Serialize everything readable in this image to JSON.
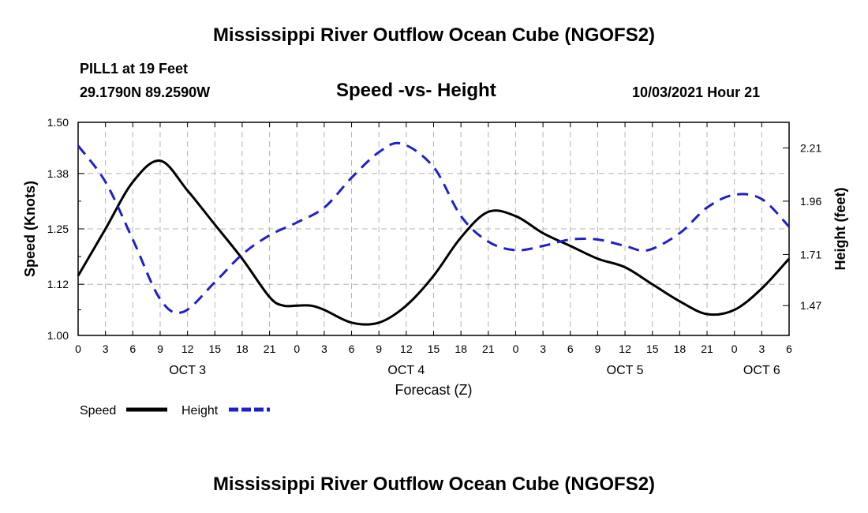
{
  "page": {
    "title_top": "Mississippi River Outflow Ocean Cube (NGOFS2)",
    "title_bottom": "Mississippi River Outflow Ocean Cube (NGOFS2)",
    "station": "PILL1 at 19 Feet",
    "coords": "29.1790N  89.2590W",
    "subtitle": "Speed -vs- Height",
    "datetime": "10/03/2021 Hour 21"
  },
  "colors": {
    "speed": "#000000",
    "height": "#1f1fcc",
    "grid": "#b4b4b4"
  },
  "chart_data": {
    "type": "line",
    "title": "Speed -vs- Height",
    "xlabel": "Forecast (Z)",
    "ylabel": "Speed (Knots)",
    "y2label": "Height (feet)",
    "x_range_hours": [
      0,
      78
    ],
    "x_tick_labels": [
      "0",
      "3",
      "6",
      "9",
      "12",
      "15",
      "18",
      "21",
      "0",
      "3",
      "6",
      "9",
      "12",
      "15",
      "18",
      "21",
      "0",
      "3",
      "6",
      "9",
      "12",
      "15",
      "18",
      "21",
      "0",
      "3",
      "6"
    ],
    "day_labels": [
      {
        "label": "OCT 3",
        "hour": 12
      },
      {
        "label": "OCT 4",
        "hour": 36
      },
      {
        "label": "OCT 5",
        "hour": 60
      },
      {
        "label": "OCT 6",
        "hour": 75
      }
    ],
    "ylim": [
      1.0,
      1.5
    ],
    "y_ticks": [
      1.0,
      1.12,
      1.25,
      1.38,
      1.5
    ],
    "y_tick_labels": [
      "1.00",
      "1.12",
      "1.25",
      "1.38",
      "1.50"
    ],
    "y2lim": [
      1.33,
      2.33
    ],
    "y2_ticks": [
      1.47,
      1.71,
      1.96,
      2.21
    ],
    "y2_tick_labels": [
      "1.47",
      "1.71",
      "1.96",
      "2.21"
    ],
    "legend": [
      {
        "name": "Speed",
        "style": "solid"
      },
      {
        "name": "Height",
        "style": "dashed"
      }
    ],
    "series": [
      {
        "name": "Speed",
        "axis": "left",
        "style": "solid",
        "x": [
          0,
          3,
          6,
          9,
          12,
          15,
          18,
          21,
          22.5,
          24,
          25.5,
          27,
          30,
          33,
          36,
          39,
          42,
          45,
          48,
          51,
          54,
          57,
          60,
          63,
          66,
          69,
          72,
          75,
          78
        ],
        "values": [
          1.14,
          1.25,
          1.36,
          1.41,
          1.34,
          1.26,
          1.18,
          1.09,
          1.07,
          1.07,
          1.07,
          1.06,
          1.03,
          1.03,
          1.07,
          1.14,
          1.23,
          1.29,
          1.28,
          1.24,
          1.21,
          1.18,
          1.16,
          1.12,
          1.08,
          1.05,
          1.06,
          1.11,
          1.18
        ]
      },
      {
        "name": "Height",
        "axis": "right",
        "style": "dashed",
        "x": [
          0,
          3,
          6,
          9,
          11.5,
          15,
          18,
          21,
          24,
          27,
          30,
          33,
          35.5,
          39,
          42,
          45,
          48,
          51,
          54,
          57,
          60,
          62.5,
          66,
          69,
          72,
          75,
          78
        ],
        "values": [
          2.22,
          2.05,
          1.78,
          1.5,
          1.44,
          1.58,
          1.71,
          1.8,
          1.86,
          1.93,
          2.07,
          2.19,
          2.23,
          2.12,
          1.89,
          1.77,
          1.73,
          1.75,
          1.78,
          1.78,
          1.75,
          1.73,
          1.81,
          1.93,
          1.99,
          1.97,
          1.84
        ]
      }
    ]
  }
}
